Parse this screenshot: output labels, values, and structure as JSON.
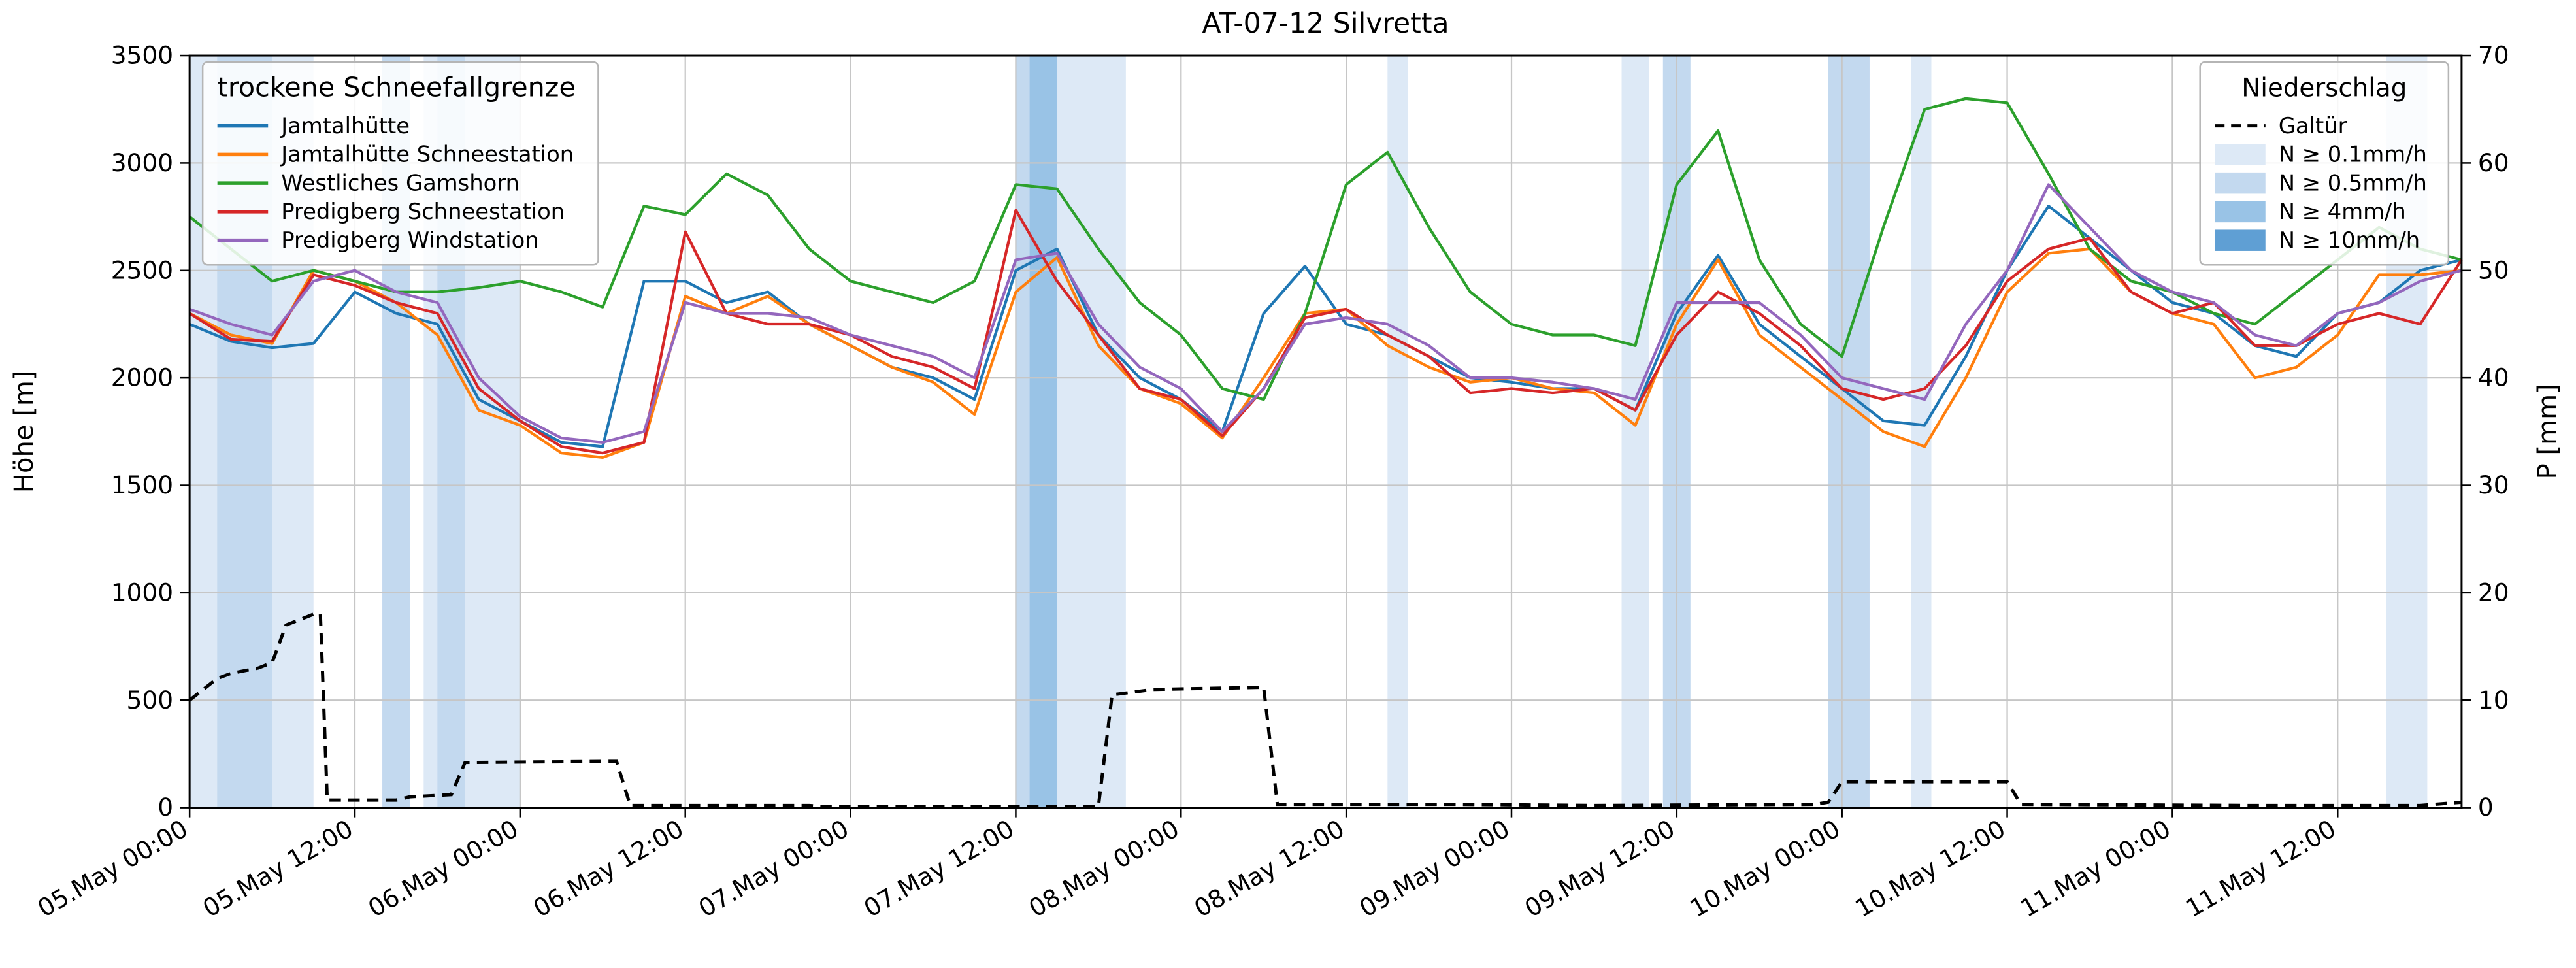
{
  "chart_data": {
    "type": "line",
    "title": "AT-07-12 Silvretta",
    "ylabel_left": "Höhe [m]",
    "ylabel_right": "P [mm]",
    "ylim_left": [
      0,
      3500
    ],
    "ylim_right": [
      0,
      70
    ],
    "xlim": [
      0,
      165
    ],
    "grid": true,
    "x_unit": "hours since 05.May 00:00",
    "x_ticks": [
      {
        "hour": 0,
        "label": "05.May 00:00"
      },
      {
        "hour": 12,
        "label": "05.May 12:00"
      },
      {
        "hour": 24,
        "label": "06.May 00:00"
      },
      {
        "hour": 36,
        "label": "06.May 12:00"
      },
      {
        "hour": 48,
        "label": "07.May 00:00"
      },
      {
        "hour": 60,
        "label": "07.May 12:00"
      },
      {
        "hour": 72,
        "label": "08.May 00:00"
      },
      {
        "hour": 84,
        "label": "08.May 12:00"
      },
      {
        "hour": 96,
        "label": "09.May 00:00"
      },
      {
        "hour": 108,
        "label": "09.May 12:00"
      },
      {
        "hour": 120,
        "label": "10.May 00:00"
      },
      {
        "hour": 132,
        "label": "10.May 12:00"
      },
      {
        "hour": 144,
        "label": "11.May 00:00"
      },
      {
        "hour": 156,
        "label": "11.May 12:00"
      }
    ],
    "yticks_left": [
      0,
      500,
      1000,
      1500,
      2000,
      2500,
      3000,
      3500
    ],
    "yticks_right": [
      0,
      10,
      20,
      30,
      40,
      50,
      60,
      70
    ],
    "legend_left": {
      "title": "trockene Schneefallgrenze"
    },
    "legend_right": {
      "title": "Niederschlag",
      "line_entry": "Galtür",
      "band_entries": [
        {
          "label": "N ≥ 0.1mm/h",
          "level": 1
        },
        {
          "label": "N ≥ 0.5mm/h",
          "level": 2
        },
        {
          "label": "N ≥ 4mm/h",
          "level": 3
        },
        {
          "label": "N ≥ 10mm/h",
          "level": 4
        }
      ]
    },
    "band_colors": {
      "1": "#dde9f6",
      "2": "#c3d9ef",
      "3": "#99c3e6",
      "4": "#5f9fd4"
    },
    "hours": [
      0,
      3,
      6,
      9,
      12,
      15,
      18,
      21,
      24,
      27,
      30,
      33,
      36,
      39,
      42,
      45,
      48,
      51,
      54,
      57,
      60,
      63,
      66,
      69,
      72,
      75,
      78,
      81,
      84,
      87,
      90,
      93,
      96,
      99,
      102,
      105,
      108,
      111,
      114,
      117,
      120,
      123,
      126,
      129,
      132,
      135,
      138,
      141,
      144,
      147,
      150,
      153,
      156,
      159,
      162,
      165
    ],
    "series": [
      {
        "name": "Jamtalhütte",
        "color": "#1f77b4",
        "values": [
          2250,
          2170,
          2140,
          2160,
          2400,
          2300,
          2250,
          1900,
          1800,
          1700,
          1680,
          2450,
          2450,
          2350,
          2400,
          2250,
          2150,
          2050,
          2000,
          1900,
          2500,
          2600,
          2200,
          2000,
          1900,
          1750,
          2300,
          2520,
          2250,
          2200,
          2100,
          2000,
          1980,
          1950,
          1950,
          1850,
          2300,
          2570,
          2250,
          2100,
          1950,
          1800,
          1780,
          2100,
          2500,
          2800,
          2650,
          2500,
          2350,
          2300,
          2150,
          2100,
          2300,
          2350,
          2500,
          2550
        ]
      },
      {
        "name": "Jamtalhütte Schneestation",
        "color": "#ff7f0e",
        "values": [
          2300,
          2200,
          2160,
          2500,
          2450,
          2350,
          2200,
          1850,
          1780,
          1650,
          1630,
          1700,
          2380,
          2300,
          2380,
          2250,
          2150,
          2050,
          1980,
          1830,
          2400,
          2560,
          2150,
          1950,
          1880,
          1720,
          2000,
          2300,
          2320,
          2150,
          2050,
          1980,
          2000,
          1950,
          1930,
          1780,
          2250,
          2550,
          2200,
          2050,
          1900,
          1750,
          1680,
          2000,
          2400,
          2580,
          2600,
          2400,
          2300,
          2250,
          2000,
          2050,
          2200,
          2480,
          2480,
          2500
        ]
      },
      {
        "name": "Westliches Gamshorn",
        "color": "#2ca02c",
        "values": [
          2750,
          2600,
          2450,
          2500,
          2450,
          2400,
          2400,
          2420,
          2450,
          2400,
          2330,
          2800,
          2760,
          2950,
          2850,
          2600,
          2450,
          2400,
          2350,
          2450,
          2900,
          2880,
          2600,
          2350,
          2200,
          1950,
          1900,
          2300,
          2900,
          3050,
          2700,
          2400,
          2250,
          2200,
          2200,
          2150,
          2900,
          3150,
          2550,
          2250,
          2100,
          2700,
          3250,
          3300,
          3280,
          2950,
          2600,
          2450,
          2400,
          2300,
          2250,
          2400,
          2550,
          2700,
          2600,
          2550
        ]
      },
      {
        "name": "Predigberg Schneestation",
        "color": "#d62728",
        "values": [
          2300,
          2180,
          2170,
          2480,
          2430,
          2350,
          2300,
          1950,
          1800,
          1680,
          1650,
          1700,
          2680,
          2300,
          2250,
          2250,
          2200,
          2100,
          2050,
          1950,
          2780,
          2450,
          2200,
          1950,
          1900,
          1730,
          1950,
          2280,
          2320,
          2200,
          2100,
          1930,
          1950,
          1930,
          1950,
          1850,
          2200,
          2400,
          2300,
          2150,
          1950,
          1900,
          1950,
          2150,
          2450,
          2600,
          2650,
          2400,
          2300,
          2350,
          2150,
          2150,
          2250,
          2300,
          2250,
          2550
        ]
      },
      {
        "name": "Predigberg Windstation",
        "color": "#9467bd",
        "values": [
          2320,
          2250,
          2200,
          2450,
          2500,
          2400,
          2350,
          2000,
          1820,
          1720,
          1700,
          1750,
          2350,
          2300,
          2300,
          2280,
          2200,
          2150,
          2100,
          2000,
          2550,
          2580,
          2250,
          2050,
          1950,
          1750,
          1950,
          2250,
          2280,
          2250,
          2150,
          2000,
          2000,
          1980,
          1950,
          1900,
          2350,
          2350,
          2350,
          2200,
          2000,
          1950,
          1900,
          2250,
          2500,
          2900,
          2700,
          2500,
          2400,
          2350,
          2200,
          2150,
          2300,
          2350,
          2450,
          2500
        ]
      }
    ],
    "galtuer": {
      "name": "Galtür",
      "color": "#000000",
      "style": "dashed",
      "axis": "right",
      "points": [
        [
          0,
          10
        ],
        [
          2,
          12
        ],
        [
          3,
          12.5
        ],
        [
          5,
          13
        ],
        [
          6,
          13.5
        ],
        [
          7,
          17
        ],
        [
          9,
          18
        ],
        [
          9.5,
          18
        ],
        [
          10,
          0.7
        ],
        [
          15,
          0.7
        ],
        [
          16,
          1
        ],
        [
          19,
          1.2
        ],
        [
          20,
          4.2
        ],
        [
          31,
          4.3
        ],
        [
          32,
          0.2
        ],
        [
          45,
          0.2
        ],
        [
          46,
          0.1
        ],
        [
          66,
          0.1
        ],
        [
          67,
          10.5
        ],
        [
          70,
          11
        ],
        [
          78,
          11.2
        ],
        [
          79,
          0.3
        ],
        [
          92,
          0.3
        ],
        [
          102,
          0.2
        ],
        [
          118,
          0.3
        ],
        [
          119,
          0.5
        ],
        [
          120,
          2.4
        ],
        [
          132,
          2.4
        ],
        [
          133,
          0.3
        ],
        [
          150,
          0.2
        ],
        [
          162,
          0.2
        ],
        [
          165,
          0.5
        ]
      ]
    },
    "precip_bands": [
      {
        "start": 0,
        "end": 2,
        "level": 1
      },
      {
        "start": 2,
        "end": 6,
        "level": 2
      },
      {
        "start": 6,
        "end": 9,
        "level": 1
      },
      {
        "start": 14,
        "end": 16,
        "level": 2
      },
      {
        "start": 17,
        "end": 24,
        "level": 1
      },
      {
        "start": 18,
        "end": 20,
        "level": 2
      },
      {
        "start": 60,
        "end": 61,
        "level": 2
      },
      {
        "start": 61,
        "end": 63,
        "level": 3
      },
      {
        "start": 63,
        "end": 68,
        "level": 1
      },
      {
        "start": 87,
        "end": 88.5,
        "level": 1
      },
      {
        "start": 104,
        "end": 106,
        "level": 1
      },
      {
        "start": 107,
        "end": 109,
        "level": 2
      },
      {
        "start": 119,
        "end": 122,
        "level": 2
      },
      {
        "start": 125,
        "end": 126.5,
        "level": 1
      },
      {
        "start": 159.5,
        "end": 162.5,
        "level": 1
      }
    ]
  }
}
